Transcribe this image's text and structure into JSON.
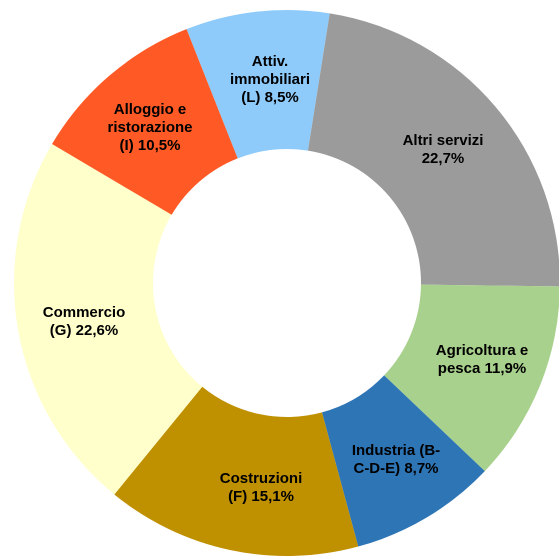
{
  "chart_data": {
    "type": "donut",
    "categories": [
      "Attiv. immobiliari (L)",
      "Altri servizi",
      "Agricoltura e pesca",
      "Industria (B-C-D-E)",
      "Costruzioni (F)",
      "Commercio (G)",
      "Alloggio e ristorazione (I)"
    ],
    "values": [
      8.5,
      22.7,
      11.9,
      8.7,
      15.1,
      22.6,
      10.5
    ],
    "value_labels": [
      "8,5%",
      "22,7%",
      "11,9%",
      "8,7%",
      "15,1%",
      "22,6%",
      "10,5%"
    ],
    "colors": [
      "#8ecbfb",
      "#9b9b9b",
      "#a9d18e",
      "#2e75b6",
      "#bf9000",
      "#ffffcc",
      "#ff5a26"
    ]
  }
}
